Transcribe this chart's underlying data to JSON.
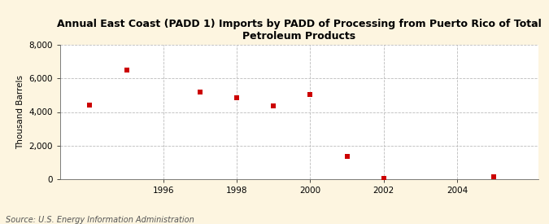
{
  "title": "Annual East Coast (PADD 1) Imports by PADD of Processing from Puerto Rico of Total\nPetroleum Products",
  "ylabel": "Thousand Barrels",
  "source": "Source: U.S. Energy Information Administration",
  "years": [
    1994,
    1995,
    1997,
    1998,
    1999,
    2000,
    2001,
    2002,
    2005
  ],
  "values": [
    4400,
    6500,
    5200,
    4850,
    4350,
    5050,
    1380,
    30,
    130
  ],
  "xlim": [
    1993.2,
    2006.2
  ],
  "ylim": [
    0,
    8000
  ],
  "yticks": [
    0,
    2000,
    4000,
    6000,
    8000
  ],
  "xticks": [
    1996,
    1998,
    2000,
    2002,
    2004
  ],
  "marker_color": "#cc0000",
  "marker": "s",
  "marker_size": 4,
  "bg_color": "#fdf5e0",
  "plot_bg_color": "#ffffff",
  "grid_color": "#bbbbbb",
  "title_fontsize": 9,
  "label_fontsize": 7.5,
  "tick_fontsize": 7.5,
  "source_fontsize": 7
}
